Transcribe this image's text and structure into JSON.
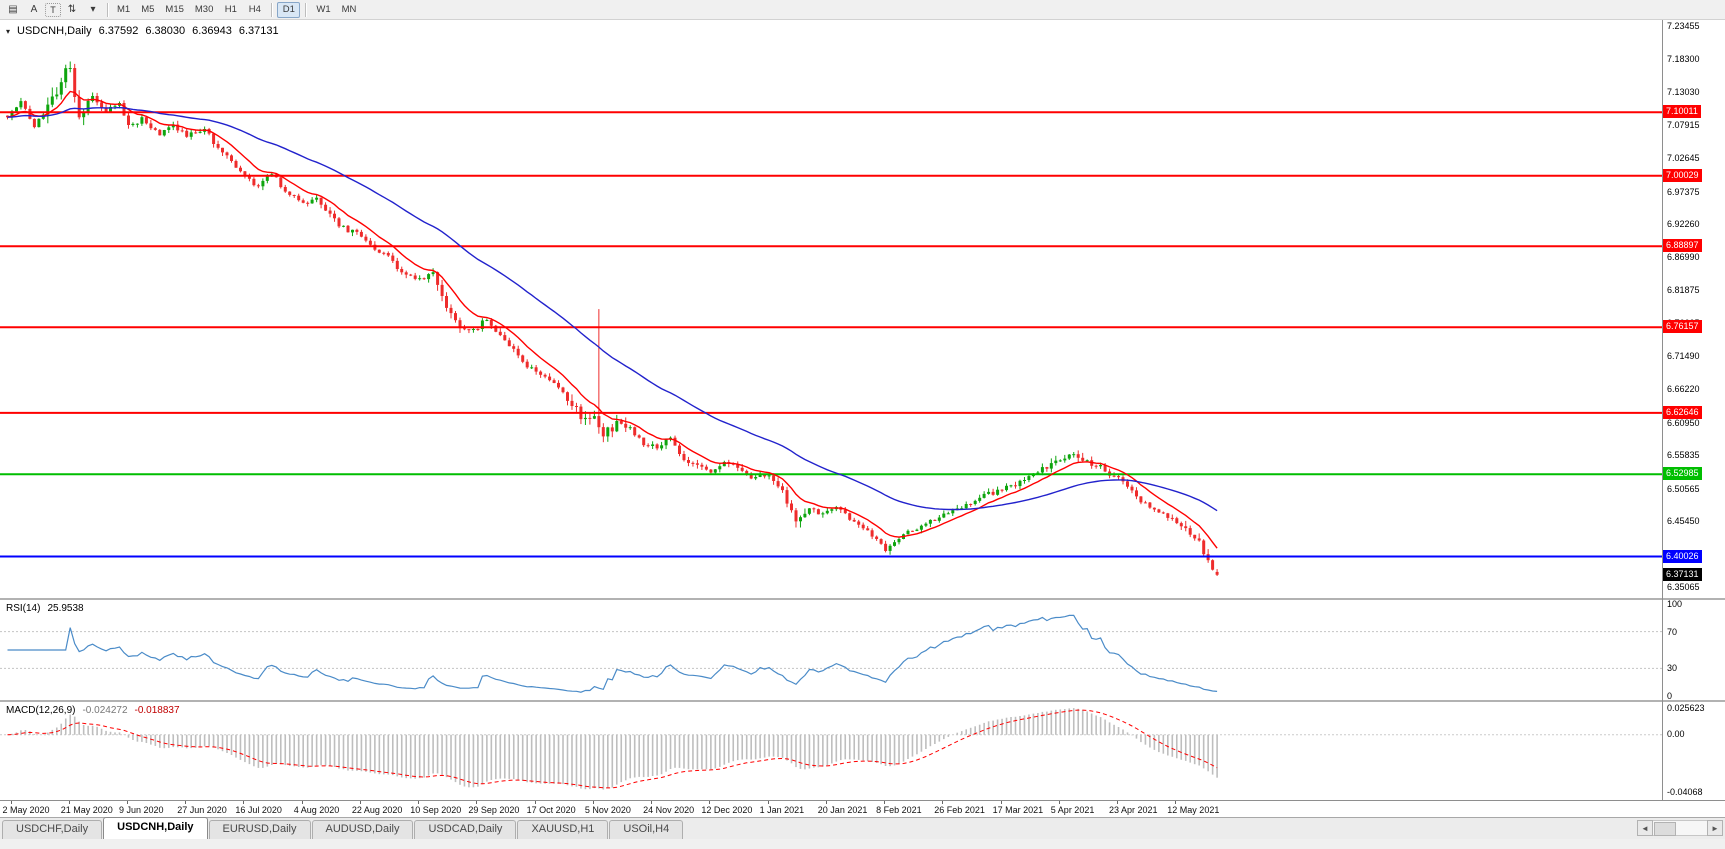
{
  "toolbar": {
    "icons": [
      {
        "name": "chart-windows-icon",
        "glyph": "▤"
      },
      {
        "name": "cursor-tool-icon",
        "glyph": "A"
      },
      {
        "name": "text-label-tool-icon",
        "glyph": "T",
        "boxed": true
      },
      {
        "name": "scale-arrows-icon",
        "glyph": "⇅"
      },
      {
        "name": "tool-dropdown-caret-icon",
        "glyph": "▾"
      }
    ],
    "timeframes": [
      {
        "label": "M1"
      },
      {
        "label": "M5"
      },
      {
        "label": "M15"
      },
      {
        "label": "M30"
      },
      {
        "label": "H1"
      },
      {
        "label": "H4"
      },
      {
        "label": "D1",
        "active": true
      },
      {
        "label": "W1"
      },
      {
        "label": "MN"
      }
    ],
    "separators_after": [
      "H4",
      "D1"
    ]
  },
  "chart": {
    "title": {
      "symbol": "USDCNH,Daily",
      "open": "6.37592",
      "high": "6.38030",
      "low": "6.36943",
      "close": "6.37131"
    },
    "price_scale_labels": [
      "7.23455",
      "7.18300",
      "7.13030",
      "7.07915",
      "7.02645",
      "6.97375",
      "6.92260",
      "6.86990",
      "6.81875",
      "6.76605",
      "6.71490",
      "6.66220",
      "6.60950",
      "6.55835",
      "6.50565",
      "6.45450",
      "6.40180",
      "6.35065"
    ],
    "hlines": [
      {
        "price": 7.10011,
        "label": "7.10011",
        "color": "#FF0000"
      },
      {
        "price": 7.00029,
        "label": "7.00029",
        "color": "#FF0000"
      },
      {
        "price": 6.88897,
        "label": "6.88897",
        "color": "#FF0000"
      },
      {
        "price": 6.76157,
        "label": "6.76157",
        "color": "#FF0000"
      },
      {
        "price": 6.62646,
        "label": "6.62646",
        "color": "#FF0000"
      },
      {
        "price": 6.52985,
        "label": "6.52985",
        "color": "#00BE00"
      },
      {
        "price": 6.40026,
        "label": "6.40026",
        "color": "#0000FF"
      }
    ],
    "current_price": {
      "price": 6.37131,
      "label": "6.37131",
      "color": "#000000"
    },
    "colors": {
      "up": "#0EA50E",
      "down": "#EE2C2C",
      "rsi": "#4A8BC8",
      "macd_hist": "#BEBEBE",
      "macd_signal": "#FF0000"
    }
  },
  "chart_data": {
    "type": "candlestick",
    "symbol": "USDCNH",
    "timeframe": "Daily",
    "bars": 271,
    "bars_per_x_label": 13,
    "y_range_top": 7.2456,
    "y_range_bottom": 6.3348,
    "last_bar": {
      "open": 6.37592,
      "high": 6.3803,
      "low": 6.36943,
      "close": 6.37131
    },
    "close_anchors": [
      [
        0,
        7.095
      ],
      [
        3,
        7.12
      ],
      [
        6,
        7.075
      ],
      [
        9,
        7.105
      ],
      [
        12,
        7.155
      ],
      [
        14,
        7.175
      ],
      [
        16,
        7.09
      ],
      [
        19,
        7.125
      ],
      [
        22,
        7.1
      ],
      [
        25,
        7.115
      ],
      [
        27,
        7.08
      ],
      [
        30,
        7.09
      ],
      [
        34,
        7.065
      ],
      [
        37,
        7.08
      ],
      [
        40,
        7.065
      ],
      [
        44,
        7.075
      ],
      [
        47,
        7.045
      ],
      [
        50,
        7.02
      ],
      [
        53,
        7.0
      ],
      [
        56,
        6.985
      ],
      [
        59,
        7.005
      ],
      [
        62,
        6.975
      ],
      [
        66,
        6.955
      ],
      [
        69,
        6.965
      ],
      [
        73,
        6.93
      ],
      [
        76,
        6.915
      ],
      [
        79,
        6.905
      ],
      [
        82,
        6.885
      ],
      [
        85,
        6.875
      ],
      [
        88,
        6.845
      ],
      [
        92,
        6.835
      ],
      [
        95,
        6.85
      ],
      [
        98,
        6.79
      ],
      [
        101,
        6.765
      ],
      [
        104,
        6.755
      ],
      [
        107,
        6.775
      ],
      [
        110,
        6.745
      ],
      [
        113,
        6.725
      ],
      [
        116,
        6.7
      ],
      [
        119,
        6.688
      ],
      [
        122,
        6.672
      ],
      [
        125,
        6.652
      ],
      [
        128,
        6.625
      ],
      [
        131,
        6.618
      ],
      [
        133,
        6.595
      ],
      [
        136,
        6.612
      ],
      [
        139,
        6.598
      ],
      [
        142,
        6.578
      ],
      [
        145,
        6.572
      ],
      [
        148,
        6.585
      ],
      [
        151,
        6.552
      ],
      [
        154,
        6.542
      ],
      [
        157,
        6.535
      ],
      [
        160,
        6.55
      ],
      [
        163,
        6.54
      ],
      [
        166,
        6.524
      ],
      [
        170,
        6.53
      ],
      [
        173,
        6.505
      ],
      [
        176,
        6.458
      ],
      [
        179,
        6.476
      ],
      [
        182,
        6.464
      ],
      [
        185,
        6.48
      ],
      [
        188,
        6.458
      ],
      [
        191,
        6.445
      ],
      [
        194,
        6.425
      ],
      [
        196,
        6.408
      ],
      [
        199,
        6.43
      ],
      [
        202,
        6.44
      ],
      [
        205,
        6.452
      ],
      [
        208,
        6.462
      ],
      [
        211,
        6.472
      ],
      [
        214,
        6.482
      ],
      [
        217,
        6.492
      ],
      [
        220,
        6.5
      ],
      [
        223,
        6.508
      ],
      [
        226,
        6.518
      ],
      [
        229,
        6.532
      ],
      [
        232,
        6.542
      ],
      [
        235,
        6.552
      ],
      [
        238,
        6.562
      ],
      [
        240,
        6.555
      ],
      [
        243,
        6.545
      ],
      [
        246,
        6.53
      ],
      [
        249,
        6.518
      ],
      [
        252,
        6.495
      ],
      [
        255,
        6.478
      ],
      [
        258,
        6.468
      ],
      [
        261,
        6.455
      ],
      [
        263,
        6.442
      ],
      [
        265,
        6.428
      ],
      [
        266,
        6.418
      ],
      [
        267,
        6.402
      ],
      [
        268,
        6.388
      ],
      [
        269,
        6.379
      ],
      [
        270,
        6.37131
      ]
    ],
    "vol_zones": [
      {
        "from": 9,
        "to": 17,
        "mult": 2.4
      },
      {
        "from": 95,
        "to": 102,
        "mult": 1.6
      },
      {
        "from": 125,
        "to": 141,
        "mult": 1.8
      },
      {
        "from": 173,
        "to": 178,
        "mult": 1.7
      },
      {
        "from": 232,
        "to": 242,
        "mult": 1.4
      },
      {
        "from": 262,
        "to": 270,
        "mult": 1.5
      }
    ],
    "spike": {
      "index": 132,
      "high": 6.79
    },
    "x_labels": [
      "2 May 2020",
      "21 May 2020",
      "9 Jun 2020",
      "27 Jun 2020",
      "16 Jul 2020",
      "4 Aug 2020",
      "22 Aug 2020",
      "10 Sep 2020",
      "29 Sep 2020",
      "17 Oct 2020",
      "5 Nov 2020",
      "24 Nov 2020",
      "12 Dec 2020",
      "1 Jan 2021",
      "20 Jan 2021",
      "8 Feb 2021",
      "26 Feb 2021",
      "17 Mar 2021",
      "5 Apr 2021",
      "23 Apr 2021",
      "12 May 2021"
    ],
    "moving_averages": [
      {
        "type": "ema",
        "period": 10,
        "color": "#FF0000"
      },
      {
        "type": "ema",
        "period": 45,
        "color": "#2222CC"
      }
    ],
    "horizontal_lines": [
      7.10011,
      7.00029,
      6.88897,
      6.76157,
      6.62646,
      6.52985,
      6.40026
    ],
    "indicators": [
      {
        "name": "RSI",
        "period": 14,
        "current": 25.9538,
        "levels": [
          70,
          30
        ],
        "range": [
          0,
          100
        ]
      },
      {
        "name": "MACD",
        "fast": 12,
        "slow": 26,
        "signal_period": 9,
        "current_macd": -0.024272,
        "current_signal": -0.018837,
        "scale_max": 0.025623,
        "scale_min": -0.04068
      }
    ]
  },
  "rsi_panel": {
    "label": "RSI(14)",
    "value": "25.9538",
    "scale_labels": [
      "100",
      "70",
      "30",
      "0"
    ]
  },
  "macd_panel": {
    "label": "MACD(12,26,9)",
    "macd_value": "-0.024272",
    "signal_value": "-0.018837",
    "scale_labels": [
      "0.025623",
      "0.00",
      "-0.04068"
    ]
  },
  "tabbar": {
    "tabs": [
      {
        "label": "USDCHF,Daily"
      },
      {
        "label": "USDCNH,Daily",
        "active": true
      },
      {
        "label": "EURUSD,Daily"
      },
      {
        "label": "AUDUSD,Daily"
      },
      {
        "label": "USDCAD,Daily"
      },
      {
        "label": "XAUUSD,H1"
      },
      {
        "label": "USOil,H4"
      }
    ]
  }
}
